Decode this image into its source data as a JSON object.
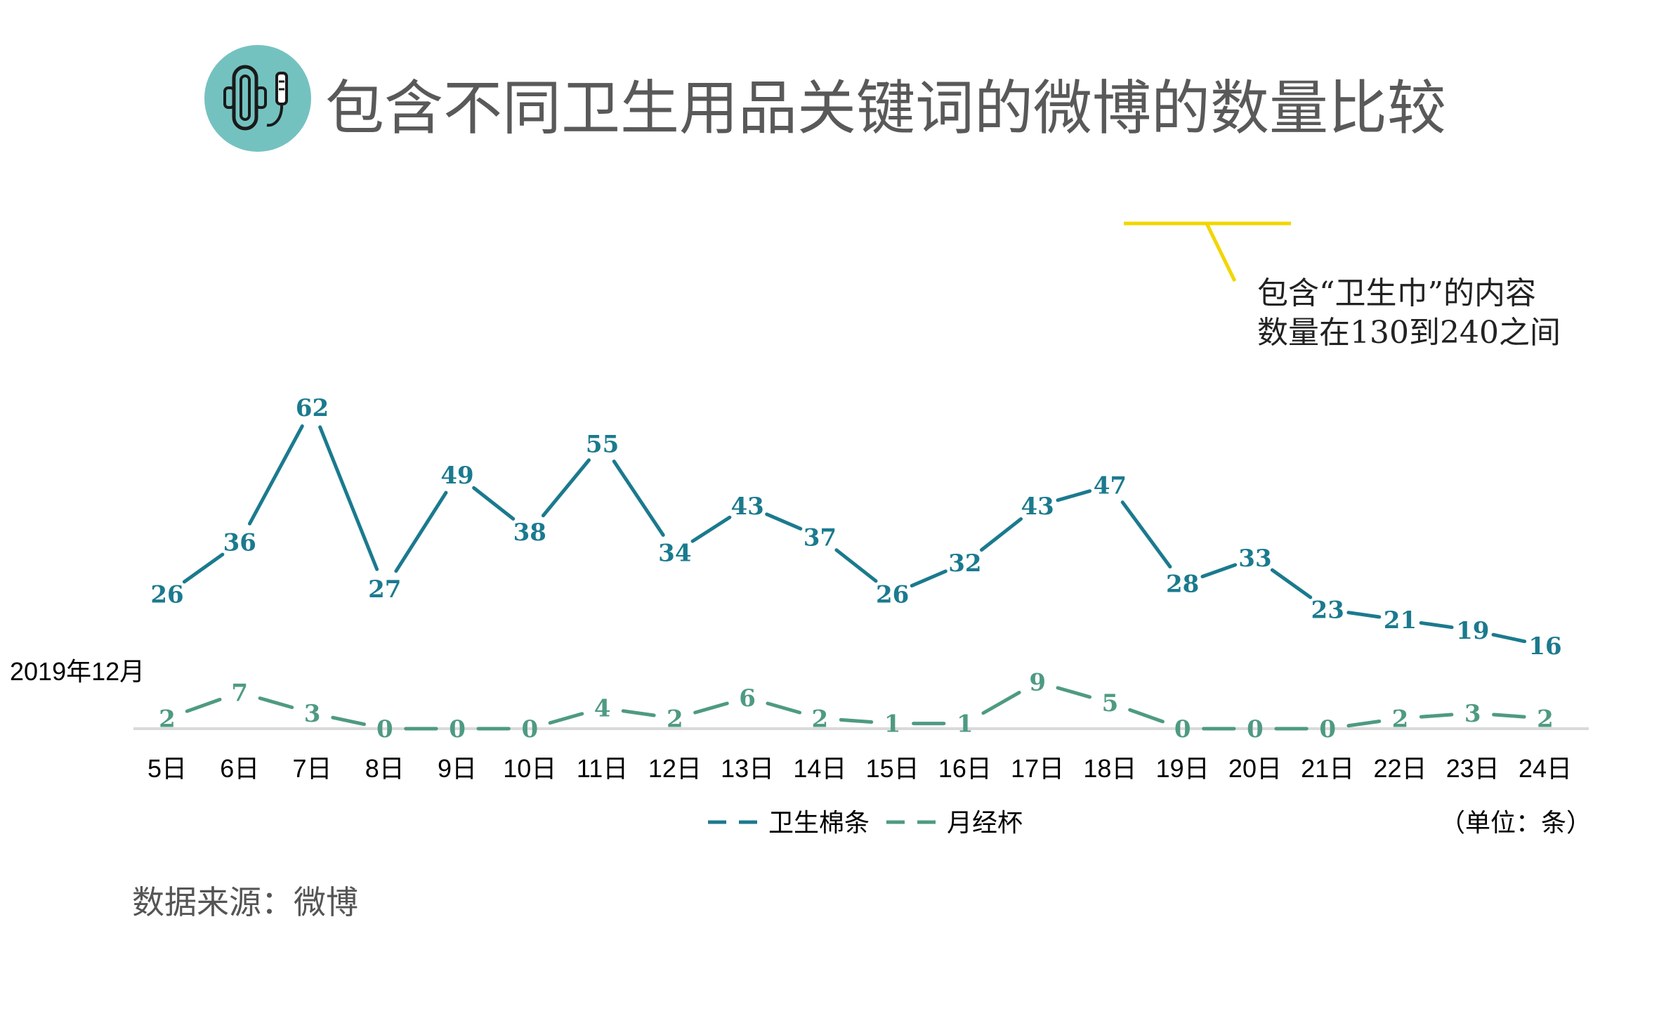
{
  "title": "包含不同卫生用品关键词的微博的数量比较",
  "annotation": {
    "line1": "包含“卫生巾”的内容",
    "line2": "数量在130到240之间",
    "color": "#F2D600"
  },
  "period_label": "2019年12月",
  "unit_label": "（单位：条）",
  "source": "数据来源：微博",
  "icon": "sanitary-pad-icon",
  "colors": {
    "tampon": "#1B7A8E",
    "cup": "#4E9A82",
    "baseline": "#D9D9D9",
    "icon_bg": "#74C2C0"
  },
  "chart_data": {
    "type": "line",
    "categories": [
      "5日",
      "6日",
      "7日",
      "8日",
      "9日",
      "10日",
      "11日",
      "12日",
      "13日",
      "14日",
      "15日",
      "16日",
      "17日",
      "18日",
      "19日",
      "20日",
      "21日",
      "22日",
      "23日",
      "24日"
    ],
    "series": [
      {
        "name": "卫生棉条",
        "values": [
          26,
          36,
          62,
          27,
          49,
          38,
          55,
          34,
          43,
          37,
          26,
          32,
          43,
          47,
          28,
          33,
          23,
          21,
          19,
          16
        ]
      },
      {
        "name": "月经杯",
        "values": [
          2,
          7,
          3,
          0,
          0,
          0,
          4,
          2,
          6,
          2,
          1,
          1,
          9,
          5,
          0,
          0,
          0,
          2,
          3,
          2
        ]
      }
    ],
    "ylim": [
      0,
      62
    ],
    "grid": false,
    "legend": "bottom-center"
  }
}
